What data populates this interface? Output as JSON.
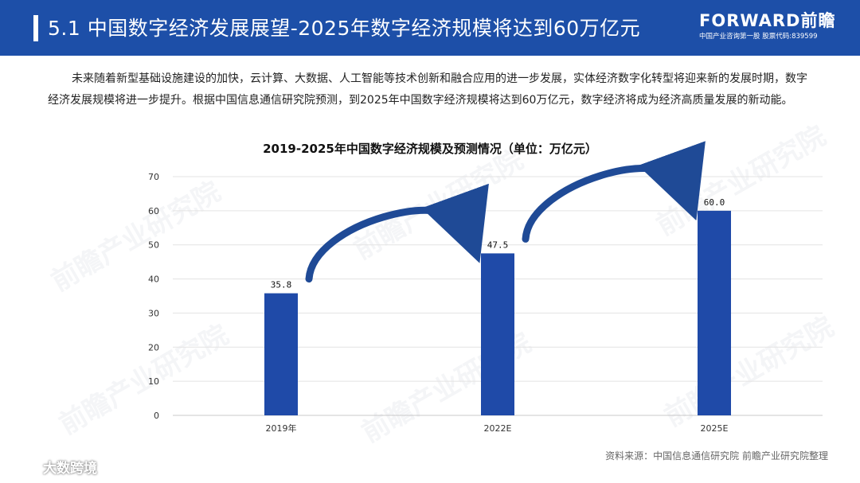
{
  "header": {
    "title": "5.1 中国数字经济发展展望-2025年数字经济规模将达到60万亿元",
    "brand_name": "FORWARD前瞻",
    "brand_tagline": "中国产业咨询第一股 股票代码:839599"
  },
  "intro_text": "未来随着新型基础设施建设的加快，云计算、大数据、人工智能等技术创新和融合应用的进一步发展，实体经济数字化转型将迎来新的发展时期，数字经济发展规模将进一步提升。根据中国信息通信研究院预测，到2025年中国数字经济规模将达到60万亿元，数字经济将成为经济高质量发展的新动能。",
  "watermark_text": "前瞻产业研究院",
  "chart_data": {
    "type": "bar",
    "title": "2019-2025年中国数字经济规模及预测情况（单位：万亿元）",
    "categories": [
      "2019年",
      "2022E",
      "2025E"
    ],
    "values": [
      35.8,
      47.5,
      60.0
    ],
    "value_labels": [
      "35.8",
      "47.5",
      "60.0"
    ],
    "y_ticks": [
      "0",
      "10",
      "20",
      "30",
      "40",
      "50",
      "60",
      "70"
    ],
    "ylim": [
      0,
      70
    ],
    "grid": true,
    "bar_color": "#1f4aa8",
    "arrow_color": "#1f4a96"
  },
  "source": "资料来源：中国信息通信研究院 前瞻产业研究院整理",
  "corner_logo": "大数跨境",
  "colors": {
    "header_bg": "#1d4fa8",
    "accent": "#1f4aa8"
  }
}
